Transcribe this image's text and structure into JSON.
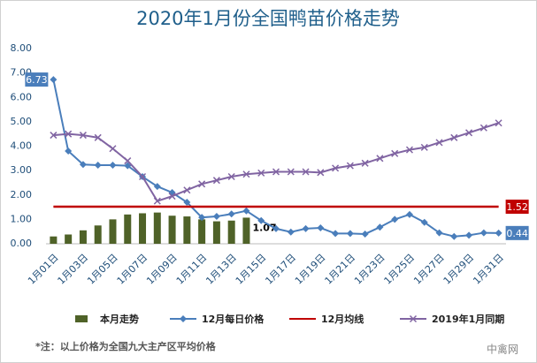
{
  "chart_data": {
    "type": "combo",
    "title": "2020年1月份全国鸭苗价格走势",
    "note": "*注：以上价格为全国九大主产区平均价格",
    "watermark": "中禽网",
    "categories": [
      "1月01日",
      null,
      "1月03日",
      null,
      "1月05日",
      null,
      "1月07日",
      null,
      "1月09日",
      null,
      "1月11日",
      null,
      "1月13日",
      null,
      "1月15日",
      null,
      "1月17日",
      null,
      "1月19日",
      null,
      "1月21日",
      null,
      "1月23日",
      null,
      "1月25日",
      null,
      "1月27日",
      null,
      "1月29日",
      null,
      "1月31日"
    ],
    "ylim": [
      0,
      8
    ],
    "yticks": [
      {
        "value": 0,
        "label": "0.00"
      },
      {
        "value": 1,
        "label": "1.00"
      },
      {
        "value": 2,
        "label": "2.00"
      },
      {
        "value": 3,
        "label": "3.00"
      },
      {
        "value": 4,
        "label": "4.00"
      },
      {
        "value": 5,
        "label": "5.00"
      },
      {
        "value": 6,
        "label": "6.00"
      },
      {
        "value": 7,
        "label": "7.00"
      },
      {
        "value": 8,
        "label": "8.00"
      }
    ],
    "grid": false,
    "series": [
      {
        "name": "本月走势",
        "type": "bar",
        "color": "#4f6228",
        "values": [
          0.3,
          0.38,
          0.55,
          0.75,
          1.0,
          1.2,
          1.25,
          1.28,
          1.15,
          1.12,
          1.0,
          0.92,
          0.95,
          1.07,
          null,
          null,
          null,
          null,
          null,
          null,
          null,
          null,
          null,
          null,
          null,
          null,
          null,
          null,
          null,
          null,
          null
        ],
        "value_labels": [
          null,
          null,
          null,
          null,
          null,
          null,
          null,
          null,
          null,
          null,
          null,
          null,
          null,
          "1.07",
          null,
          null,
          null,
          null,
          null,
          null,
          null,
          null,
          null,
          null,
          null,
          null,
          null,
          null,
          null,
          null,
          null
        ]
      },
      {
        "name": "12月每日价格",
        "type": "line",
        "marker": "diamond",
        "color": "#4a7ebb",
        "values": [
          6.73,
          3.8,
          3.25,
          3.22,
          3.22,
          3.2,
          2.75,
          2.35,
          2.1,
          1.7,
          1.08,
          1.12,
          1.22,
          1.35,
          0.95,
          0.62,
          0.48,
          0.62,
          0.65,
          0.42,
          0.42,
          0.4,
          0.68,
          1.0,
          1.2,
          0.88,
          0.45,
          0.3,
          0.35,
          0.45,
          0.44
        ],
        "value_labels": [
          "6.73",
          null,
          null,
          null,
          null,
          null,
          null,
          null,
          null,
          null,
          null,
          null,
          null,
          null,
          null,
          null,
          null,
          null,
          null,
          null,
          null,
          null,
          null,
          null,
          null,
          null,
          null,
          null,
          null,
          null,
          "0.44"
        ]
      },
      {
        "name": "12月均线",
        "type": "line",
        "marker": "none",
        "color": "#c00000",
        "values": [
          1.52,
          1.52,
          1.52,
          1.52,
          1.52,
          1.52,
          1.52,
          1.52,
          1.52,
          1.52,
          1.52,
          1.52,
          1.52,
          1.52,
          1.52,
          1.52,
          1.52,
          1.52,
          1.52,
          1.52,
          1.52,
          1.52,
          1.52,
          1.52,
          1.52,
          1.52,
          1.52,
          1.52,
          1.52,
          1.52,
          1.52
        ],
        "value_labels": [
          null,
          null,
          null,
          null,
          null,
          null,
          null,
          null,
          null,
          null,
          null,
          null,
          null,
          null,
          null,
          null,
          null,
          null,
          null,
          null,
          null,
          null,
          null,
          null,
          null,
          null,
          null,
          null,
          null,
          null,
          "1.52"
        ]
      },
      {
        "name": "2019年1月同期",
        "type": "line",
        "marker": "x",
        "color": "#8064a2",
        "values": [
          4.45,
          4.5,
          4.45,
          4.35,
          3.9,
          3.4,
          2.75,
          1.75,
          1.95,
          2.2,
          2.45,
          2.6,
          2.75,
          2.85,
          2.9,
          2.95,
          2.95,
          2.95,
          2.92,
          3.1,
          3.2,
          3.3,
          3.5,
          3.7,
          3.85,
          3.95,
          4.15,
          4.35,
          4.55,
          4.75,
          4.95
        ]
      }
    ]
  }
}
